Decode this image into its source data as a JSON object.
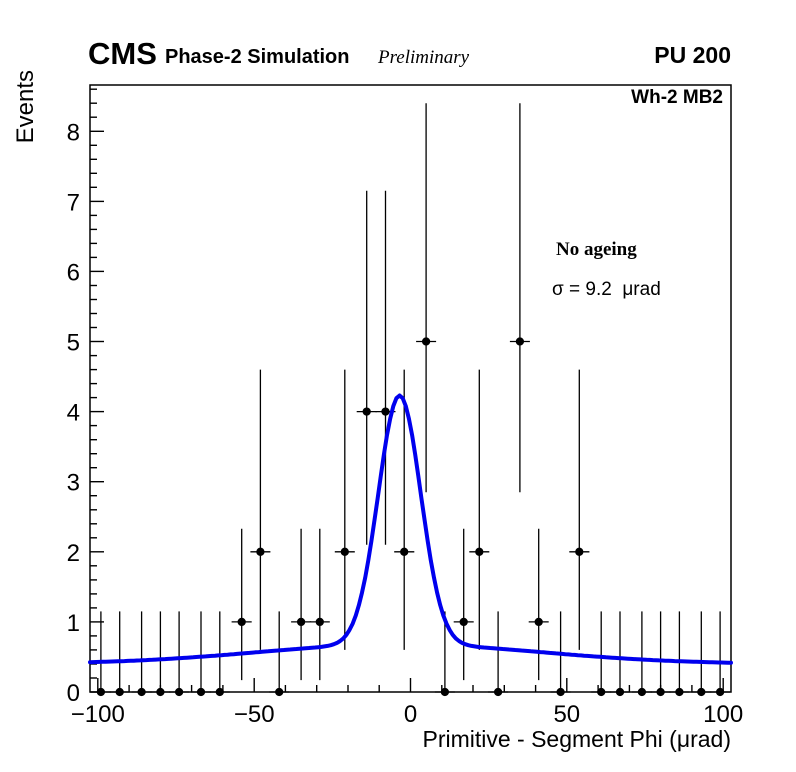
{
  "header": {
    "cms": "CMS",
    "subtitle": "Phase-2 Simulation",
    "preliminary": "Preliminary",
    "pu": "PU 200",
    "chamber": "Wh-2 MB2"
  },
  "annotations": {
    "ageing": "No ageing",
    "sigma": "σ = 9.2  μrad"
  },
  "chart_data": {
    "type": "scatter",
    "title": "",
    "xlabel": "Primitive - Segment Phi (μrad)",
    "ylabel": "Events",
    "xlim": [
      -102.5,
      102.5
    ],
    "ylim": [
      0,
      8.66
    ],
    "x_major_ticks": [
      -100,
      -50,
      0,
      50,
      100
    ],
    "x_minor_step": 10,
    "y_major_ticks": [
      0,
      1,
      2,
      3,
      4,
      5,
      6,
      7,
      8
    ],
    "y_minor_step": 0.2,
    "x_bin_halfwidth": 3.2,
    "marker_color": "#000000",
    "fit_color": "#0000ee",
    "legend_position": "top-right",
    "grid": false,
    "points": [
      {
        "x": -99,
        "y": 0
      },
      {
        "x": -93,
        "y": 0
      },
      {
        "x": -86,
        "y": 0
      },
      {
        "x": -80,
        "y": 0
      },
      {
        "x": -74,
        "y": 0
      },
      {
        "x": -67,
        "y": 0
      },
      {
        "x": -61,
        "y": 0
      },
      {
        "x": -54,
        "y": 1
      },
      {
        "x": -48,
        "y": 2
      },
      {
        "x": -42,
        "y": 0
      },
      {
        "x": -35,
        "y": 1
      },
      {
        "x": -29,
        "y": 1
      },
      {
        "x": -21,
        "y": 2
      },
      {
        "x": -14,
        "y": 4
      },
      {
        "x": -8,
        "y": 4
      },
      {
        "x": -2,
        "y": 2
      },
      {
        "x": 5,
        "y": 5
      },
      {
        "x": 11,
        "y": 0
      },
      {
        "x": 17,
        "y": 1
      },
      {
        "x": 22,
        "y": 2
      },
      {
        "x": 28,
        "y": 0
      },
      {
        "x": 35,
        "y": 5
      },
      {
        "x": 41,
        "y": 1
      },
      {
        "x": 48,
        "y": 0
      },
      {
        "x": 54,
        "y": 2
      },
      {
        "x": 61,
        "y": 0
      },
      {
        "x": 67,
        "y": 0
      },
      {
        "x": 74,
        "y": 0
      },
      {
        "x": 80,
        "y": 0
      },
      {
        "x": 86,
        "y": 0
      },
      {
        "x": 93,
        "y": 0
      },
      {
        "x": 99,
        "y": 0
      }
    ],
    "error_by_count": {
      "0": [
        0,
        1.15
      ],
      "1": [
        0.83,
        1.33
      ],
      "2": [
        1.4,
        2.6
      ],
      "4": [
        1.9,
        3.15
      ],
      "5": [
        2.15,
        3.4
      ]
    },
    "fit": {
      "shape": "gaussian_core_plus_wide_gaussian_plus_const",
      "mean": -3.5,
      "amp_core": 3.55,
      "sigma_core": 6.8,
      "amp_wide": 0.28,
      "sigma_wide": 45,
      "baseline": 0.4,
      "sigma_label_value": 9.2
    }
  }
}
